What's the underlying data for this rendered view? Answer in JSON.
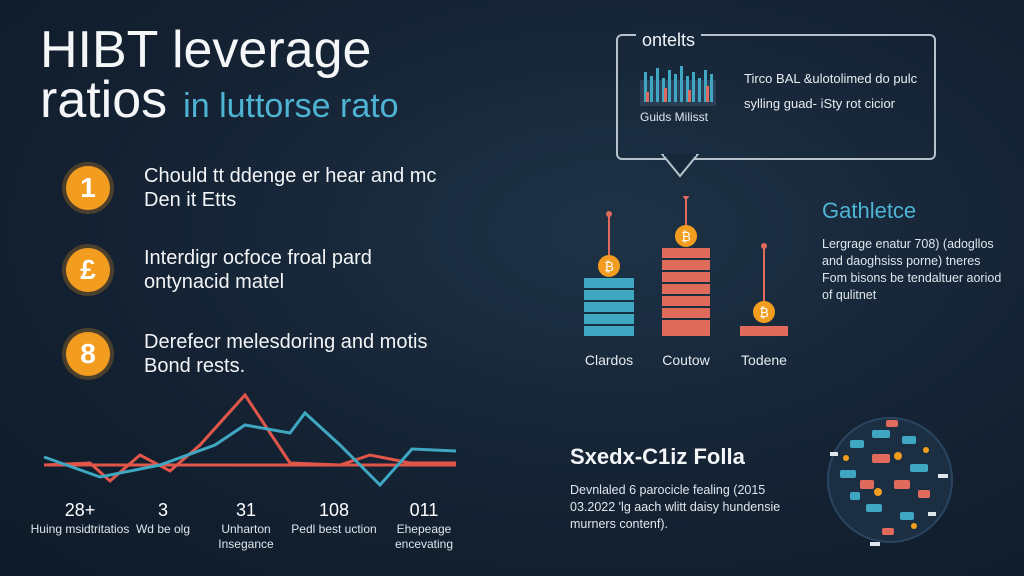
{
  "title": {
    "line1": "HIBT leverage",
    "line2": "ratios",
    "accent": "in luttorse rato"
  },
  "steps": [
    {
      "badge": "1",
      "text": "Chould tt ddenge er hear and mc Den it Etts"
    },
    {
      "badge": "£",
      "text": "Interdigr ocfoce froal pard ontynacid matel"
    },
    {
      "badge": "8",
      "text": "Derefecr melesdoring and motis Bond rests."
    }
  ],
  "callout": {
    "title": "ontelts",
    "caption": "Guids Milisst",
    "text": "Tirco BAL &ulotolimed do pulc sylling guad- iSty rot cicior"
  },
  "gauges": [
    {
      "label": "Clardos",
      "icon": "bitcoin-coin-icon",
      "color": "#3fa7c2",
      "glyph": "₿"
    },
    {
      "label": "Coutow",
      "icon": "bitcoin-coin-icon",
      "color": "#e06a5c",
      "glyph": "₿"
    },
    {
      "label": "Todene",
      "icon": "bitcoin-coin-icon",
      "color": "#e06a5c",
      "glyph": "₿"
    }
  ],
  "stats_panel": {
    "title": "Gathletce",
    "text": "Lergrage enatur 708) (adogllos and daoghsiss porne) tneres Fom bisons be tendaltuer aoriod of qulitnet"
  },
  "metrics": [
    {
      "value": "28+",
      "label": "Huing msidtritatios"
    },
    {
      "value": "3",
      "label": "Wd be olg"
    },
    {
      "value": "31",
      "label": "Unharton Insegance"
    },
    {
      "value": "108",
      "label": "Pedl best uction"
    },
    {
      "value": "011",
      "label": "Ehepeage encevating"
    }
  ],
  "section": {
    "title": "Sxedx-C1iz Folla",
    "text": "Devnlaled 6 parocicle fealing (2015 03.2022 'lg aach wlitt daisy hundensie murners contenf)."
  },
  "colors": {
    "background": "#142233",
    "accent_blue": "#4fb3d4",
    "accent_orange": "#f29d1f",
    "accent_red": "#e06a5c"
  }
}
